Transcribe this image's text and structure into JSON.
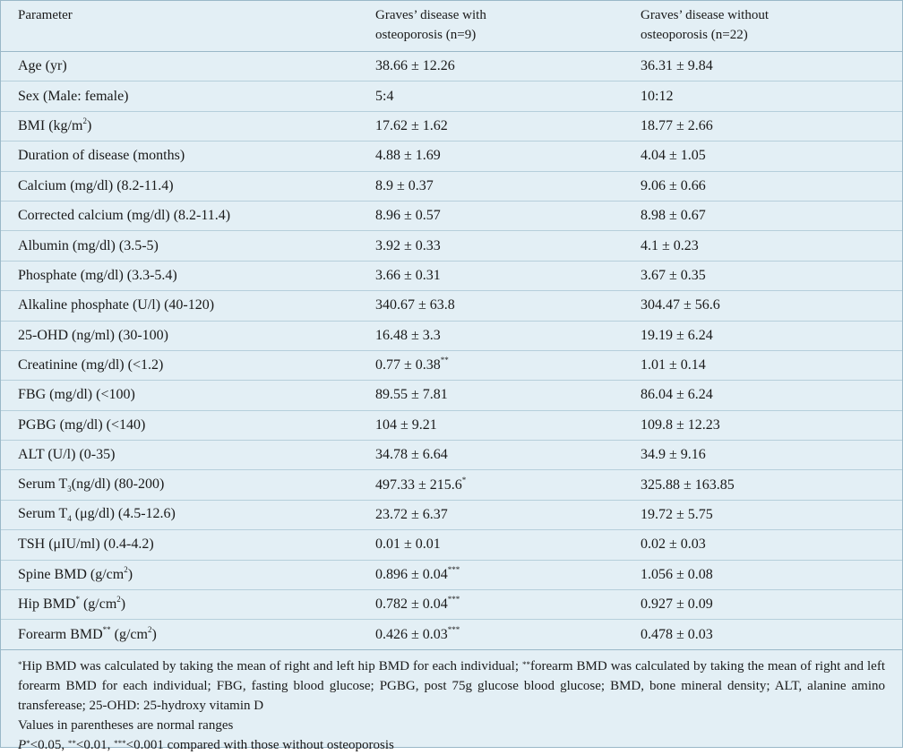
{
  "header": {
    "col1": "Parameter",
    "col2_line1": "Graves’ disease with",
    "col2_line2": "osteoporosis (n=9)",
    "col3_line1": "Graves’ disease without",
    "col3_line2": "osteoporosis (n=22)"
  },
  "rows": [
    {
      "p": "Age (yr)",
      "a": "38.66 ± 12.26",
      "b": "36.31 ± 9.84"
    },
    {
      "p": "Sex (Male: female)",
      "a": "5:4",
      "b": "10:12"
    },
    {
      "p_pre": "BMI (kg/m",
      "p_sup": "2",
      "p_post": ")",
      "a": "17.62 ± 1.62",
      "b": "18.77 ± 2.66"
    },
    {
      "p": "Duration of disease (months)",
      "a": "4.88 ± 1.69",
      "b": "4.04 ± 1.05"
    },
    {
      "p": "Calcium (mg/dl) (8.2-11.4)",
      "a": "8.9 ± 0.37",
      "b": "9.06 ± 0.66"
    },
    {
      "p": "Corrected calcium (mg/dl) (8.2-11.4)",
      "a": "8.96 ± 0.57",
      "b": "8.98 ± 0.67"
    },
    {
      "p": "Albumin (mg/dl) (3.5-5)",
      "a": "3.92 ± 0.33",
      "b": "4.1 ± 0.23"
    },
    {
      "p": "Phosphate (mg/dl) (3.3-5.4)",
      "a": "3.66 ± 0.31",
      "b": "3.67 ± 0.35"
    },
    {
      "p": "Alkaline phosphate (U/l) (40-120)",
      "a": "340.67 ± 63.8",
      "b": "304.47 ± 56.6"
    },
    {
      "p": "25-OHD (ng/ml) (30-100)",
      "a": "16.48 ± 3.3",
      "b": "19.19 ± 6.24"
    },
    {
      "p": "Creatinine (mg/dl) (<1.2)",
      "a": "0.77 ± 0.38",
      "a_sup": "**",
      "b": "1.01 ± 0.14"
    },
    {
      "p": "FBG (mg/dl) (<100)",
      "a": "89.55 ± 7.81",
      "b": "86.04 ± 6.24"
    },
    {
      "p": "PGBG (mg/dl) (<140)",
      "a": "104 ± 9.21",
      "b": "109.8 ± 12.23"
    },
    {
      "p": "ALT (U/l) (0-35)",
      "a": "34.78 ± 6.64",
      "b": "34.9 ± 9.16"
    },
    {
      "p_pre": "Serum T",
      "p_sub": "3",
      "p_post": "(ng/dl) (80-200)",
      "a": "497.33 ± 215.6",
      "a_sup": "*",
      "b": "325.88 ± 163.85"
    },
    {
      "p_pre": "Serum T",
      "p_sub": "4",
      "p_post": " (μg/dl) (4.5-12.6)",
      "a": "23.72 ± 6.37",
      "b": "19.72 ± 5.75"
    },
    {
      "p": "TSH (μIU/ml) (0.4-4.2)",
      "a": "0.01 ± 0.01",
      "b": "0.02 ± 0.03"
    },
    {
      "p_pre": "Spine BMD (g/cm",
      "p_sup": "2",
      "p_post": ")",
      "a": "0.896 ± 0.04",
      "a_sup": "***",
      "b": "1.056 ± 0.08"
    },
    {
      "p_pre": "Hip BMD",
      "p_sup": "*",
      "p_mid": " (g/cm",
      "p_sup2": "2",
      "p_post": ")",
      "a": "0.782 ± 0.04",
      "a_sup": "***",
      "b": "0.927 ± 0.09"
    },
    {
      "p_pre": "Forearm BMD",
      "p_sup": "**",
      "p_mid": " (g/cm",
      "p_sup2": "2",
      "p_post": ")",
      "a": "0.426 ± 0.03",
      "a_sup": "***",
      "b": "0.478 ± 0.03"
    }
  ],
  "notes": {
    "n1_sup1": "*",
    "n1_a": "Hip BMD was calculated by taking the mean of right and left hip BMD for each individual; ",
    "n1_sup2": "**",
    "n1_b": "forearm BMD was calculated by taking the mean of right and left forearm BMD for each individual; FBG, fasting blood glucose; PGBG, post 75g glucose blood glucose; BMD, bone mineral density; ALT, alanine amino transferease; 25-OHD: 25-hydroxy vitamin D",
    "n2": "Values in parentheses are normal ranges",
    "n3_p": "P",
    "n3_s1": "*",
    "n3_t1": "<0.05, ",
    "n3_s2": "**",
    "n3_t2": "<0.01, ",
    "n3_s3": "***",
    "n3_t3": "<0.001 compared with those without osteoporosis"
  }
}
